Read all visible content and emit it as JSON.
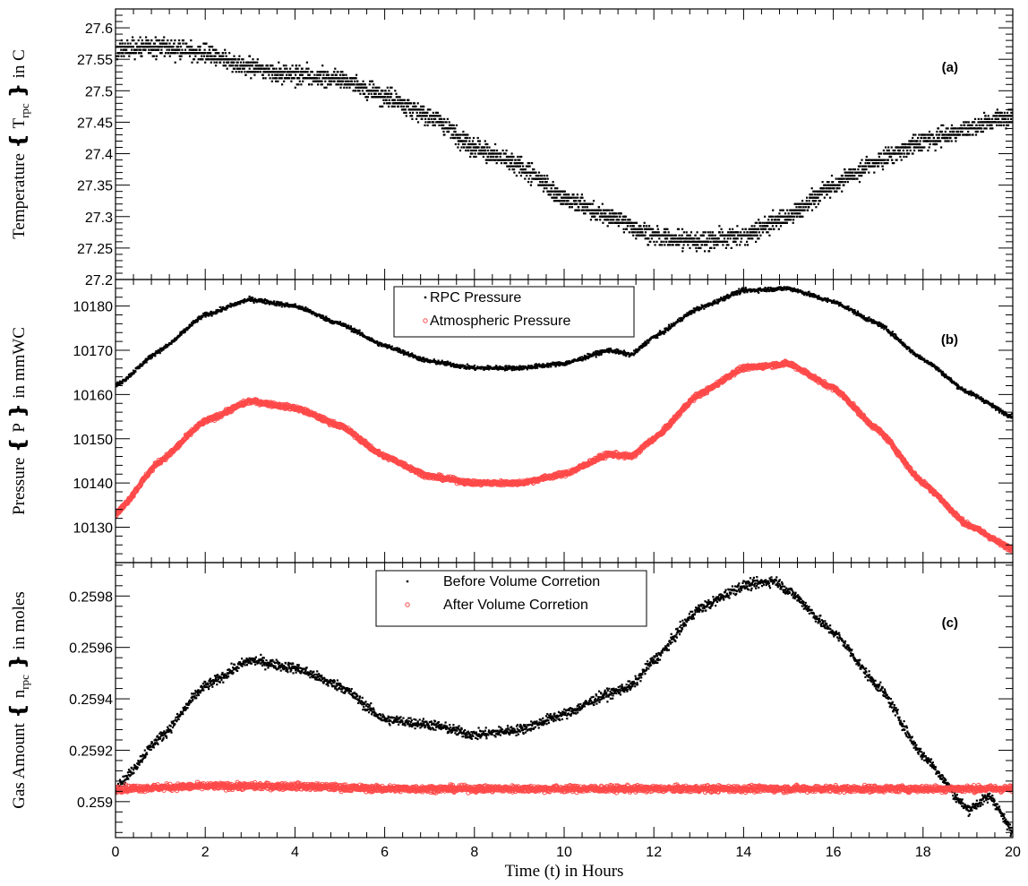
{
  "chart_data": [
    {
      "type": "scatter",
      "panel_label": "(a)",
      "ylabel_pre": "Temperature ",
      "ylabel_sym": "T",
      "ylabel_sub": "rpc",
      "ylabel_post": " in C",
      "xlim": [
        0,
        20
      ],
      "ylim": [
        27.2,
        27.63
      ],
      "yticks": [
        27.2,
        27.25,
        27.3,
        27.35,
        27.4,
        27.45,
        27.5,
        27.55,
        27.6
      ],
      "ytick_labels": [
        "27.2",
        "27.25",
        "27.3",
        "27.35",
        "27.4",
        "27.45",
        "27.5",
        "27.55",
        "27.6"
      ],
      "grid": false,
      "series": [
        {
          "color": "#000000",
          "marker": "dot",
          "quantization": 0.01,
          "x": [
            0,
            1,
            2,
            3,
            4,
            5,
            6,
            7,
            8,
            9,
            10,
            11,
            12,
            13,
            14,
            15,
            16,
            17,
            18,
            19,
            20
          ],
          "y": [
            27.565,
            27.57,
            27.56,
            27.535,
            27.525,
            27.52,
            27.49,
            27.46,
            27.41,
            27.38,
            27.33,
            27.3,
            27.27,
            27.26,
            27.27,
            27.3,
            27.35,
            27.39,
            27.42,
            27.44,
            27.46
          ]
        }
      ]
    },
    {
      "type": "scatter",
      "panel_label": "(b)",
      "ylabel_pre": "Pressure ",
      "ylabel_sym": "P",
      "ylabel_sub": "",
      "ylabel_post": " in mmWC",
      "xlim": [
        0,
        20
      ],
      "ylim": [
        10122,
        10186
      ],
      "yticks": [
        10130,
        10140,
        10150,
        10160,
        10170,
        10180
      ],
      "ytick_labels": [
        "10130",
        "10140",
        "10150",
        "10160",
        "10170",
        "10180"
      ],
      "grid": false,
      "legend": "top-center",
      "series": [
        {
          "name": "RPC Pressure",
          "color": "#000000",
          "marker": "dot",
          "x": [
            0,
            1,
            2,
            3,
            4,
            5,
            6,
            7,
            8,
            9,
            10,
            11,
            11.5,
            12,
            13,
            14,
            15,
            16,
            17,
            18,
            19,
            20
          ],
          "y": [
            10162,
            10170,
            10178,
            10181.5,
            10180,
            10176,
            10171,
            10167.5,
            10166,
            10166,
            10167,
            10170,
            10169,
            10173,
            10179.5,
            10183.5,
            10184,
            10181,
            10176,
            10168,
            10160.5,
            10155
          ]
        },
        {
          "name": "Atmospheric Pressure",
          "color": "#ff4a4a",
          "marker": "circle",
          "x": [
            0,
            1,
            2,
            3,
            4,
            5,
            6,
            7,
            8,
            9,
            10,
            11,
            11.5,
            12,
            13,
            14,
            15,
            16,
            17,
            18,
            19,
            20
          ],
          "y": [
            10133,
            10145,
            10154,
            10158.5,
            10157,
            10153,
            10146,
            10141.5,
            10140,
            10140,
            10142,
            10146.5,
            10146,
            10150,
            10160,
            10166,
            10167,
            10161.5,
            10152,
            10140,
            10130.5,
            10125
          ]
        }
      ]
    },
    {
      "type": "scatter",
      "panel_label": "(c)",
      "ylabel_pre": "Gas Amount ",
      "ylabel_sym": "n",
      "ylabel_sub": "rpc",
      "ylabel_post": " in moles",
      "xlabel": "Time (t) in Hours",
      "xlim": [
        0,
        20
      ],
      "ylim": [
        0.25886,
        0.25993
      ],
      "xticks": [
        0,
        2,
        4,
        6,
        8,
        10,
        12,
        14,
        16,
        18,
        20
      ],
      "xtick_labels": [
        "0",
        "2",
        "4",
        "6",
        "8",
        "10",
        "12",
        "14",
        "16",
        "18",
        "20"
      ],
      "yticks": [
        0.259,
        0.2592,
        0.2594,
        0.2596,
        0.2598
      ],
      "ytick_labels": [
        "0.259",
        "0.2592",
        "0.2594",
        "0.2596",
        "0.2598"
      ],
      "grid": false,
      "legend": "top-center",
      "series": [
        {
          "name": "Before Volume Corretion",
          "color": "#000000",
          "marker": "dot",
          "x": [
            0,
            1,
            2,
            3,
            4,
            5,
            6,
            7,
            8,
            9,
            10,
            11,
            11.5,
            12,
            13,
            14,
            14.7,
            15,
            16,
            17,
            18,
            19,
            19.5,
            20
          ],
          "y": [
            0.25905,
            0.25925,
            0.25945,
            0.25955,
            0.25952,
            0.25945,
            0.25932,
            0.2593,
            0.25926,
            0.25928,
            0.25934,
            0.25942,
            0.25945,
            0.25955,
            0.25975,
            0.25984,
            0.25986,
            0.25982,
            0.25966,
            0.25945,
            0.25918,
            0.25897,
            0.25902,
            0.25888
          ]
        },
        {
          "name": "After Volume Corretion",
          "color": "#ff4a4a",
          "marker": "circle",
          "x": [
            0,
            2,
            4,
            6,
            8,
            10,
            12,
            14,
            16,
            18,
            20
          ],
          "y": [
            0.25905,
            0.25906,
            0.25906,
            0.25905,
            0.25905,
            0.25905,
            0.25905,
            0.25905,
            0.25905,
            0.25905,
            0.25905
          ]
        }
      ]
    }
  ]
}
